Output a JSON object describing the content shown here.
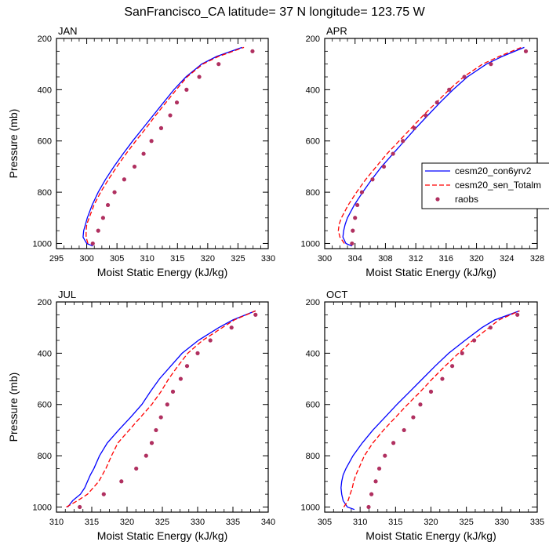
{
  "title": "SanFrancisco_CA  latitude= 37 N longitude= 123.75 W",
  "legend": {
    "entries": [
      {
        "label": "cesm20_con6yrv2",
        "style": "solid",
        "color": "#0000ff"
      },
      {
        "label": "cesm20_sen_Totalm",
        "style": "dashed",
        "color": "#ff0000"
      },
      {
        "label": "raobs",
        "style": "marker",
        "color": "#b03060"
      }
    ],
    "placement": "right of APR panel"
  },
  "chart_data": [
    {
      "type": "line",
      "panel": "JAN",
      "xlabel": "Moist Static Energy (kJ/kg)",
      "ylabel": "Pressure (mb)",
      "xlim": [
        295,
        330
      ],
      "ylim": [
        1020,
        200
      ],
      "xticks": [
        295,
        300,
        305,
        310,
        315,
        320,
        325,
        330
      ],
      "yticks": [
        200,
        400,
        600,
        800,
        1000
      ],
      "series": [
        {
          "name": "cesm20_con6yrv2",
          "pressure": [
            1010,
            1000,
            975,
            950,
            925,
            900,
            850,
            800,
            750,
            700,
            650,
            600,
            550,
            500,
            450,
            400,
            350,
            300,
            270,
            235
          ],
          "values": [
            301.0,
            300.0,
            299.4,
            299.5,
            299.8,
            300.1,
            300.9,
            301.9,
            303.1,
            304.5,
            306.0,
            307.6,
            309.3,
            311.0,
            312.7,
            314.4,
            316.4,
            319.0,
            321.5,
            325.7
          ]
        },
        {
          "name": "cesm20_sen_Totalm",
          "pressure": [
            1000,
            975,
            950,
            925,
            900,
            850,
            800,
            750,
            700,
            650,
            600,
            550,
            500,
            450,
            400,
            350,
            300,
            270,
            235
          ],
          "values": [
            300.2,
            299.9,
            299.9,
            300.0,
            300.4,
            301.2,
            302.3,
            303.6,
            305.0,
            306.5,
            308.1,
            309.8,
            311.4,
            313.1,
            314.8,
            316.6,
            319.2,
            321.8,
            326.0
          ]
        },
        {
          "name": "raobs",
          "pressure": [
            1000,
            950,
            900,
            850,
            800,
            750,
            700,
            650,
            600,
            550,
            500,
            450,
            400,
            350,
            300,
            250
          ],
          "values": [
            301.0,
            301.9,
            302.7,
            303.5,
            304.6,
            306.2,
            307.9,
            309.4,
            310.7,
            312.3,
            313.8,
            314.9,
            316.5,
            318.6,
            321.8,
            327.4
          ]
        }
      ]
    },
    {
      "type": "line",
      "panel": "APR",
      "xlabel": "Moist Static Energy (kJ/kg)",
      "ylabel": "",
      "xlim": [
        300,
        328
      ],
      "ylim": [
        1020,
        200
      ],
      "xticks": [
        300,
        304,
        308,
        312,
        316,
        320,
        324,
        328
      ],
      "yticks": [
        200,
        400,
        600,
        800,
        1000
      ],
      "series": [
        {
          "name": "cesm20_con6yrv2",
          "pressure": [
            1010,
            1000,
            975,
            950,
            925,
            900,
            850,
            800,
            750,
            700,
            650,
            600,
            550,
            500,
            450,
            400,
            350,
            300,
            270,
            235
          ],
          "values": [
            303.6,
            302.8,
            302.4,
            302.5,
            302.7,
            303.0,
            303.9,
            305.0,
            306.2,
            307.5,
            309.0,
            310.5,
            312.0,
            313.6,
            315.2,
            316.9,
            318.8,
            321.3,
            323.4,
            326.3
          ]
        },
        {
          "name": "cesm20_sen_Totalm",
          "pressure": [
            1000,
            975,
            950,
            925,
            900,
            850,
            800,
            750,
            700,
            650,
            600,
            550,
            500,
            450,
            400,
            350,
            300,
            270,
            235
          ],
          "values": [
            302.6,
            302.0,
            301.8,
            301.9,
            302.2,
            303.1,
            304.2,
            305.4,
            306.8,
            308.2,
            309.8,
            311.4,
            313.0,
            314.7,
            316.4,
            318.3,
            320.8,
            323.0,
            325.9
          ]
        },
        {
          "name": "raobs",
          "pressure": [
            1000,
            950,
            900,
            850,
            800,
            750,
            700,
            650,
            600,
            550,
            500,
            450,
            400,
            350,
            300,
            250
          ],
          "values": [
            303.6,
            303.7,
            304.0,
            304.3,
            304.9,
            306.3,
            307.8,
            309.0,
            310.3,
            311.8,
            313.3,
            314.8,
            316.4,
            318.4,
            321.9,
            326.5
          ]
        }
      ]
    },
    {
      "type": "line",
      "panel": "JUL",
      "xlabel": "Moist Static Energy (kJ/kg)",
      "ylabel": "Pressure (mb)",
      "xlim": [
        310,
        340
      ],
      "ylim": [
        1020,
        200
      ],
      "xticks": [
        310,
        315,
        320,
        325,
        330,
        335,
        340
      ],
      "yticks": [
        200,
        400,
        600,
        800,
        1000
      ],
      "series": [
        {
          "name": "cesm20_con6yrv2",
          "pressure": [
            1000,
            975,
            950,
            925,
            900,
            875,
            850,
            800,
            750,
            700,
            650,
            600,
            550,
            500,
            450,
            400,
            350,
            300,
            270,
            235
          ],
          "values": [
            311.6,
            312.3,
            313.4,
            314.0,
            314.4,
            314.8,
            315.3,
            316.1,
            317.2,
            318.8,
            320.5,
            322.1,
            323.3,
            324.6,
            326.2,
            327.8,
            330.1,
            333.0,
            335.0,
            338.2
          ]
        },
        {
          "name": "cesm20_sen_Totalm",
          "pressure": [
            1000,
            975,
            950,
            925,
            900,
            850,
            800,
            750,
            700,
            650,
            600,
            550,
            500,
            450,
            400,
            350,
            300,
            270,
            235
          ],
          "values": [
            311.4,
            313.0,
            314.4,
            315.2,
            316.0,
            317.0,
            317.8,
            318.7,
            320.3,
            321.9,
            323.5,
            324.8,
            325.9,
            327.2,
            328.6,
            330.7,
            333.5,
            335.2,
            338.2
          ]
        },
        {
          "name": "raobs",
          "pressure": [
            1000,
            950,
            900,
            850,
            800,
            750,
            700,
            650,
            600,
            550,
            500,
            450,
            400,
            350,
            300,
            250
          ],
          "values": [
            313.3,
            316.7,
            319.2,
            321.3,
            322.7,
            323.5,
            324.1,
            324.8,
            325.7,
            326.5,
            327.6,
            328.5,
            330.0,
            331.8,
            334.8,
            338.2
          ]
        }
      ]
    },
    {
      "type": "line",
      "panel": "OCT",
      "xlabel": "Moist Static Energy (kJ/kg)",
      "ylabel": "",
      "xlim": [
        305,
        335
      ],
      "ylim": [
        1020,
        200
      ],
      "xticks": [
        305,
        310,
        315,
        320,
        325,
        330,
        335
      ],
      "yticks": [
        200,
        400,
        600,
        800,
        1000
      ],
      "series": [
        {
          "name": "cesm20_con6yrv2",
          "pressure": [
            1010,
            1000,
            975,
            950,
            925,
            900,
            875,
            850,
            800,
            750,
            700,
            650,
            600,
            550,
            500,
            450,
            400,
            350,
            300,
            270,
            235
          ],
          "values": [
            309.2,
            308.2,
            307.6,
            307.4,
            307.3,
            307.4,
            307.6,
            308.0,
            309.0,
            310.3,
            311.8,
            313.5,
            315.2,
            317.0,
            318.8,
            320.6,
            322.5,
            324.8,
            327.2,
            329.0,
            332.5
          ]
        },
        {
          "name": "cesm20_sen_Totalm",
          "pressure": [
            1000,
            975,
            950,
            925,
            900,
            875,
            850,
            800,
            750,
            700,
            650,
            600,
            550,
            500,
            450,
            400,
            350,
            300,
            270,
            235
          ],
          "values": [
            307.7,
            308.3,
            308.6,
            308.9,
            309.1,
            309.4,
            309.8,
            310.6,
            311.8,
            313.3,
            315.0,
            316.7,
            318.5,
            320.2,
            322.0,
            323.9,
            325.9,
            328.2,
            329.6,
            332.5
          ]
        },
        {
          "name": "raobs",
          "pressure": [
            1000,
            950,
            900,
            850,
            800,
            750,
            700,
            650,
            600,
            550,
            500,
            450,
            400,
            350,
            300,
            250
          ],
          "values": [
            311.2,
            311.6,
            312.2,
            312.7,
            313.5,
            314.7,
            316.2,
            317.5,
            318.5,
            320.0,
            321.6,
            323.0,
            324.4,
            326.1,
            328.4,
            332.2
          ]
        }
      ]
    }
  ]
}
